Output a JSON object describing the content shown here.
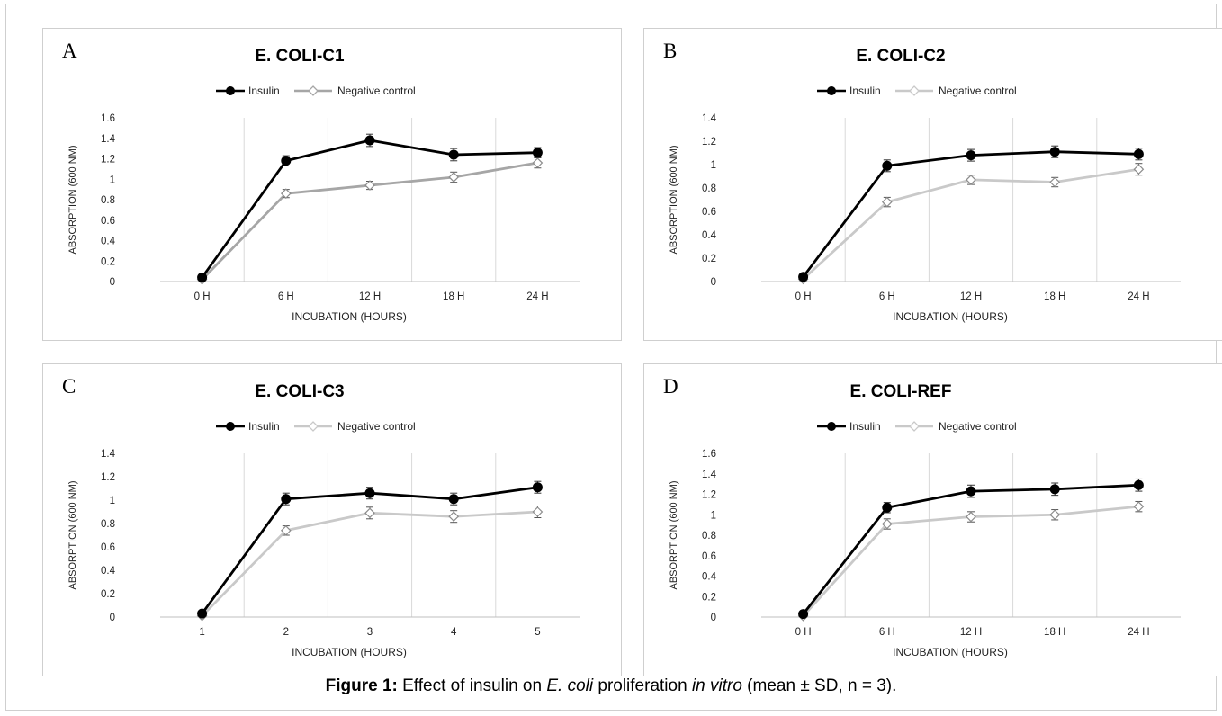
{
  "caption": {
    "label": "Figure 1:",
    "p1": " Effect of insulin on ",
    "i1": "E. coli",
    "p2": " proliferation ",
    "i2": "in vitro",
    "p3": " (mean ± SD, n = 3)."
  },
  "chart_data": [
    {
      "type": "line",
      "panel_letter": "A",
      "title": "E. COLI-C1",
      "xlabel": "INCUBATION (HOURS)",
      "ylabel": "ABSORPTION (600 NM)",
      "categories": [
        "0 H",
        "6 H",
        "12 H",
        "18 H",
        "24 H"
      ],
      "ylim": [
        0,
        1.6
      ],
      "yticks": [
        0,
        0.2,
        0.4,
        0.6,
        0.8,
        1,
        1.2,
        1.4,
        1.6
      ],
      "legend_position": "top",
      "series": [
        {
          "name": "Insulin",
          "values": [
            0.04,
            1.18,
            1.38,
            1.24,
            1.26
          ],
          "errors": [
            0.02,
            0.05,
            0.06,
            0.06,
            0.05
          ],
          "color": "#000000",
          "marker": "filled-circle"
        },
        {
          "name": "Negative control",
          "values": [
            0.02,
            0.86,
            0.94,
            1.02,
            1.16
          ],
          "errors": [
            0.02,
            0.04,
            0.04,
            0.05,
            0.05
          ],
          "color": "#a6a6a6",
          "marker": "open-diamond"
        }
      ]
    },
    {
      "type": "line",
      "panel_letter": "B",
      "title": "E. COLI-C2",
      "xlabel": "INCUBATION (HOURS)",
      "ylabel": "ABSORPTION (600 NM)",
      "categories": [
        "0 H",
        "6 H",
        "12 H",
        "18 H",
        "24 H"
      ],
      "ylim": [
        0,
        1.4
      ],
      "yticks": [
        0,
        0.2,
        0.4,
        0.6,
        0.8,
        1,
        1.2,
        1.4
      ],
      "legend_position": "top",
      "series": [
        {
          "name": "Insulin",
          "values": [
            0.04,
            0.99,
            1.08,
            1.11,
            1.09
          ],
          "errors": [
            0.02,
            0.05,
            0.05,
            0.05,
            0.05
          ],
          "color": "#000000",
          "marker": "filled-circle"
        },
        {
          "name": "Negative control",
          "values": [
            0.02,
            0.68,
            0.87,
            0.85,
            0.96
          ],
          "errors": [
            0.02,
            0.04,
            0.04,
            0.04,
            0.05
          ],
          "color": "#c9c9c9",
          "marker": "open-diamond"
        }
      ]
    },
    {
      "type": "line",
      "panel_letter": "C",
      "title": "E. COLI-C3",
      "xlabel": "INCUBATION (HOURS)",
      "ylabel": "ABSORPTION (600 NM)",
      "categories": [
        "1",
        "2",
        "3",
        "4",
        "5"
      ],
      "ylim": [
        0,
        1.4
      ],
      "yticks": [
        0,
        0.2,
        0.4,
        0.6,
        0.8,
        1,
        1.2,
        1.4
      ],
      "legend_position": "top",
      "series": [
        {
          "name": "Insulin",
          "values": [
            0.03,
            1.01,
            1.06,
            1.01,
            1.11
          ],
          "errors": [
            0.02,
            0.05,
            0.05,
            0.05,
            0.05
          ],
          "color": "#000000",
          "marker": "filled-circle"
        },
        {
          "name": "Negative control",
          "values": [
            0.01,
            0.74,
            0.89,
            0.86,
            0.9
          ],
          "errors": [
            0.02,
            0.04,
            0.05,
            0.05,
            0.05
          ],
          "color": "#c9c9c9",
          "marker": "open-diamond"
        }
      ]
    },
    {
      "type": "line",
      "panel_letter": "D",
      "title": "E. COLI-REF",
      "xlabel": "INCUBATION (HOURS)",
      "ylabel": "ABSORPTION (600 NM)",
      "categories": [
        "0 H",
        "6 H",
        "12 H",
        "18 H",
        "24 H"
      ],
      "ylim": [
        0,
        1.6
      ],
      "yticks": [
        0,
        0.2,
        0.4,
        0.6,
        0.8,
        1,
        1.2,
        1.4,
        1.6
      ],
      "legend_position": "top",
      "series": [
        {
          "name": "Insulin",
          "values": [
            0.03,
            1.07,
            1.23,
            1.25,
            1.29
          ],
          "errors": [
            0.02,
            0.05,
            0.06,
            0.06,
            0.06
          ],
          "color": "#000000",
          "marker": "filled-circle"
        },
        {
          "name": "Negative control",
          "values": [
            0.01,
            0.91,
            0.98,
            1.0,
            1.08
          ],
          "errors": [
            0.02,
            0.05,
            0.05,
            0.05,
            0.05
          ],
          "color": "#c9c9c9",
          "marker": "open-diamond"
        }
      ]
    }
  ]
}
